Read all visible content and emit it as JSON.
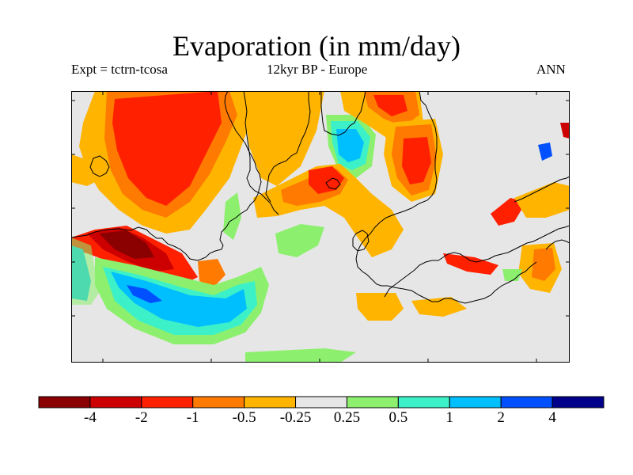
{
  "figure": {
    "title": "Evaporation (in mm/day)",
    "left_label": "Expt = tctrn-tcosa",
    "center_label": "12kyr BP - Europe",
    "right_label": "ANN"
  },
  "colorbar": {
    "colors": [
      "#8b0000",
      "#cc0000",
      "#ff2000",
      "#ff7a00",
      "#ffb400",
      "#e6e6e6",
      "#8cf06e",
      "#3cf0c8",
      "#00bfff",
      "#0050ff",
      "#00008b"
    ],
    "labels": [
      "-4",
      "-2",
      "-1",
      "-0.5",
      "-0.25",
      "0.25",
      "0.5",
      "1",
      "2",
      "4"
    ]
  },
  "map": {
    "background_color": "#e6e6e6",
    "coastline_color": "#000000"
  }
}
